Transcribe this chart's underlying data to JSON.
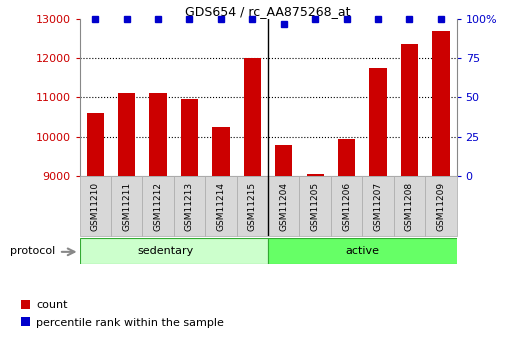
{
  "title": "GDS654 / rc_AA875268_at",
  "categories": [
    "GSM11210",
    "GSM11211",
    "GSM11212",
    "GSM11213",
    "GSM11214",
    "GSM11215",
    "GSM11204",
    "GSM11205",
    "GSM11206",
    "GSM11207",
    "GSM11208",
    "GSM11209"
  ],
  "counts": [
    10600,
    11120,
    11120,
    10950,
    10250,
    12000,
    9800,
    9060,
    9950,
    11750,
    12350,
    12700
  ],
  "percentiles": [
    100,
    100,
    100,
    100,
    100,
    100,
    97,
    100,
    100,
    100,
    100,
    100
  ],
  "n_sedentary": 6,
  "n_active": 6,
  "group_labels": [
    "sedentary",
    "active"
  ],
  "group_colors": [
    "#ccffcc",
    "#66ff66"
  ],
  "bar_color": "#cc0000",
  "dot_color": "#0000cc",
  "ylim_left": [
    9000,
    13000
  ],
  "ylim_right": [
    0,
    100
  ],
  "yticks_left": [
    9000,
    10000,
    11000,
    12000,
    13000
  ],
  "yticks_right": [
    0,
    25,
    50,
    75,
    100
  ],
  "right_ytick_labels": [
    "0",
    "25",
    "50",
    "75",
    "100%"
  ],
  "grid_lines": [
    10000,
    11000,
    12000
  ],
  "background_color": "#ffffff",
  "tick_color_left": "#cc0000",
  "tick_color_right": "#0000cc",
  "protocol_label": "protocol",
  "legend_count_label": "count",
  "legend_percentile_label": "percentile rank within the sample",
  "xtick_box_color": "#d8d8d8",
  "xtick_box_edge": "#aaaaaa"
}
